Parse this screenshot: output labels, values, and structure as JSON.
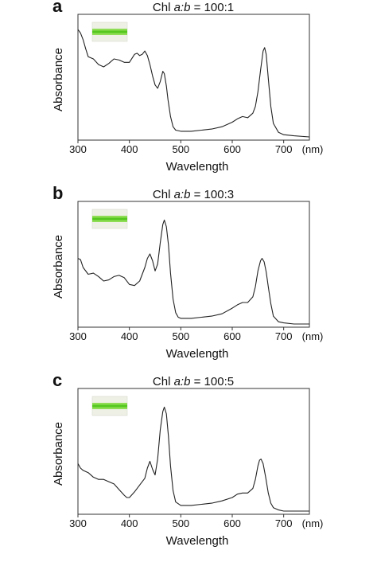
{
  "chart_data": [
    {
      "type": "line",
      "panel": "a",
      "title_prefix": "Chl ",
      "title_ratio": "a:b",
      "title_value": " = 100:1",
      "xlabel": "Wavelength",
      "ylabel": "Absorbance",
      "x_unit": "(nm)",
      "xlim": [
        300,
        750
      ],
      "ylim": [
        0,
        1
      ],
      "xticks": [
        300,
        400,
        500,
        600,
        700
      ],
      "inset_color": "#7dd93a",
      "series": [
        {
          "x": [
            300,
            305,
            310,
            315,
            320,
            330,
            340,
            350,
            360,
            370,
            380,
            390,
            400,
            410,
            415,
            420,
            425,
            430,
            435,
            440,
            445,
            450,
            455,
            460,
            465,
            468,
            472,
            475,
            480,
            485,
            490,
            500,
            510,
            520,
            540,
            560,
            580,
            600,
            610,
            620,
            630,
            640,
            645,
            650,
            655,
            660,
            663,
            666,
            670,
            675,
            680,
            690,
            700,
            720,
            750
          ],
          "y": [
            0.95,
            0.92,
            0.86,
            0.78,
            0.71,
            0.69,
            0.64,
            0.62,
            0.65,
            0.69,
            0.68,
            0.66,
            0.66,
            0.73,
            0.74,
            0.72,
            0.73,
            0.76,
            0.72,
            0.64,
            0.54,
            0.46,
            0.43,
            0.49,
            0.58,
            0.56,
            0.45,
            0.33,
            0.18,
            0.09,
            0.06,
            0.05,
            0.05,
            0.05,
            0.06,
            0.07,
            0.09,
            0.13,
            0.16,
            0.18,
            0.17,
            0.21,
            0.27,
            0.4,
            0.59,
            0.76,
            0.79,
            0.73,
            0.52,
            0.27,
            0.12,
            0.04,
            0.02,
            0.01,
            0.0
          ]
        }
      ]
    },
    {
      "type": "line",
      "panel": "b",
      "title_prefix": "Chl ",
      "title_ratio": "a:b",
      "title_value": " = 100:3",
      "xlabel": "Wavelength",
      "ylabel": "Absorbance",
      "x_unit": "(nm)",
      "xlim": [
        300,
        750
      ],
      "ylim": [
        0,
        1
      ],
      "xticks": [
        300,
        400,
        500,
        600,
        700
      ],
      "inset_color": "#7dd93a",
      "series": [
        {
          "x": [
            300,
            305,
            310,
            320,
            330,
            340,
            350,
            360,
            370,
            380,
            390,
            400,
            410,
            420,
            430,
            435,
            440,
            445,
            450,
            455,
            460,
            465,
            468,
            472,
            476,
            480,
            485,
            490,
            495,
            500,
            510,
            520,
            540,
            560,
            580,
            600,
            610,
            620,
            630,
            640,
            645,
            650,
            655,
            658,
            662,
            666,
            670,
            675,
            680,
            690,
            700,
            720,
            750
          ],
          "y": [
            0.58,
            0.57,
            0.5,
            0.44,
            0.45,
            0.42,
            0.38,
            0.39,
            0.42,
            0.43,
            0.41,
            0.35,
            0.34,
            0.38,
            0.5,
            0.58,
            0.62,
            0.56,
            0.47,
            0.53,
            0.72,
            0.88,
            0.92,
            0.86,
            0.7,
            0.45,
            0.22,
            0.1,
            0.06,
            0.05,
            0.05,
            0.05,
            0.06,
            0.07,
            0.09,
            0.14,
            0.17,
            0.19,
            0.19,
            0.24,
            0.33,
            0.47,
            0.56,
            0.58,
            0.55,
            0.46,
            0.33,
            0.18,
            0.07,
            0.02,
            0.01,
            0.0,
            0.0
          ]
        }
      ]
    },
    {
      "type": "line",
      "panel": "c",
      "title_prefix": "Chl ",
      "title_ratio": "a:b",
      "title_value": " = 100:5",
      "xlabel": "Wavelength",
      "ylabel": "Absorbance",
      "x_unit": "(nm)",
      "xlim": [
        300,
        750
      ],
      "ylim": [
        0,
        1
      ],
      "xticks": [
        300,
        400,
        500,
        600,
        700
      ],
      "inset_color": "#7dd93a",
      "series": [
        {
          "x": [
            300,
            305,
            310,
            320,
            330,
            340,
            350,
            360,
            370,
            380,
            390,
            395,
            400,
            410,
            420,
            430,
            435,
            440,
            445,
            450,
            455,
            460,
            465,
            468,
            472,
            476,
            480,
            485,
            490,
            500,
            510,
            520,
            540,
            560,
            580,
            600,
            610,
            620,
            630,
            640,
            645,
            650,
            653,
            656,
            660,
            665,
            670,
            675,
            680,
            690,
            700,
            720,
            750
          ],
          "y": [
            0.42,
            0.38,
            0.36,
            0.34,
            0.3,
            0.28,
            0.28,
            0.26,
            0.24,
            0.19,
            0.14,
            0.12,
            0.12,
            0.17,
            0.23,
            0.29,
            0.38,
            0.44,
            0.37,
            0.32,
            0.46,
            0.72,
            0.88,
            0.92,
            0.86,
            0.66,
            0.4,
            0.18,
            0.08,
            0.05,
            0.05,
            0.05,
            0.06,
            0.07,
            0.09,
            0.12,
            0.15,
            0.16,
            0.16,
            0.2,
            0.28,
            0.4,
            0.45,
            0.46,
            0.42,
            0.3,
            0.16,
            0.07,
            0.03,
            0.01,
            0.0,
            0.0,
            0.0
          ]
        }
      ]
    }
  ]
}
